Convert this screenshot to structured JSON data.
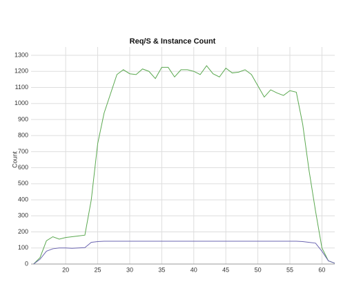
{
  "chart_data": {
    "type": "line",
    "title": "Req/S & Instance Count",
    "y_label": "Count",
    "x": [
      15,
      16,
      17,
      18,
      19,
      20,
      21,
      22,
      23,
      24,
      25,
      26,
      27,
      28,
      29,
      30,
      31,
      32,
      33,
      34,
      35,
      36,
      37,
      38,
      39,
      40,
      41,
      42,
      43,
      44,
      45,
      46,
      47,
      48,
      49,
      50,
      51,
      52,
      53,
      54,
      55,
      56,
      57,
      58,
      59,
      60,
      61,
      62
    ],
    "series": [
      {
        "color": "#5aa84f",
        "values": [
          0,
          40,
          145,
          170,
          155,
          165,
          170,
          175,
          180,
          400,
          750,
          940,
          1060,
          1180,
          1210,
          1185,
          1180,
          1215,
          1200,
          1155,
          1225,
          1225,
          1165,
          1210,
          1210,
          1200,
          1180,
          1235,
          1185,
          1165,
          1220,
          1190,
          1195,
          1210,
          1180,
          1110,
          1040,
          1085,
          1065,
          1050,
          1080,
          1070,
          870,
          580,
          330,
          100,
          20,
          5
        ]
      },
      {
        "color": "#6a64b0",
        "values": [
          0,
          30,
          80,
          95,
          100,
          100,
          98,
          100,
          102,
          135,
          140,
          142,
          142,
          142,
          142,
          142,
          142,
          142,
          142,
          142,
          142,
          142,
          142,
          142,
          142,
          142,
          142,
          142,
          142,
          142,
          142,
          142,
          142,
          142,
          142,
          142,
          142,
          142,
          142,
          142,
          142,
          142,
          140,
          135,
          130,
          80,
          20,
          5
        ]
      }
    ],
    "xlim": [
      14.6,
      62
    ],
    "xticks": [
      20,
      25,
      30,
      35,
      40,
      45,
      50,
      55,
      60
    ],
    "ylim": [
      0,
      1300
    ],
    "yticks": [
      0,
      100,
      200,
      300,
      400,
      500,
      600,
      700,
      800,
      900,
      1000,
      1100,
      1200,
      1300
    ],
    "grid": true
  }
}
